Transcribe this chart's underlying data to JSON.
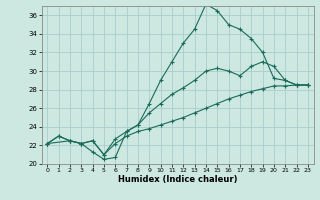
{
  "xlabel": "Humidex (Indice chaleur)",
  "background_color": "#cce8e0",
  "grid_color": "#aacccc",
  "line_color": "#1a6b5a",
  "xlim": [
    -0.5,
    23.5
  ],
  "ylim": [
    20,
    37
  ],
  "xticks": [
    0,
    1,
    2,
    3,
    4,
    5,
    6,
    7,
    8,
    9,
    10,
    11,
    12,
    13,
    14,
    15,
    16,
    17,
    18,
    19,
    20,
    21,
    22,
    23
  ],
  "yticks": [
    20,
    22,
    24,
    26,
    28,
    30,
    32,
    34,
    36
  ],
  "line1_x": [
    0,
    1,
    2,
    3,
    4,
    5,
    6,
    7,
    8,
    9,
    10,
    11,
    12,
    13,
    14,
    15,
    16,
    17,
    18,
    19,
    20,
    21,
    22,
    23
  ],
  "line1_y": [
    22.2,
    23.0,
    22.5,
    22.2,
    21.3,
    20.5,
    20.7,
    23.5,
    24.2,
    26.5,
    29.0,
    31.0,
    33.0,
    34.5,
    37.2,
    36.5,
    35.0,
    34.5,
    33.5,
    32.0,
    29.2,
    29.0,
    28.5,
    28.5
  ],
  "line2_x": [
    0,
    2,
    3,
    4,
    5,
    6,
    7,
    8,
    9,
    10,
    11,
    12,
    13,
    14,
    15,
    16,
    17,
    18,
    19,
    20,
    21,
    22,
    23
  ],
  "line2_y": [
    22.2,
    22.5,
    22.2,
    22.5,
    21.0,
    22.7,
    23.5,
    24.2,
    25.5,
    26.5,
    27.5,
    28.2,
    29.0,
    30.0,
    30.3,
    30.0,
    29.5,
    30.5,
    31.0,
    30.5,
    29.0,
    28.5,
    28.5
  ],
  "line3_x": [
    0,
    1,
    2,
    3,
    4,
    5,
    6,
    7,
    8,
    9,
    10,
    11,
    12,
    13,
    14,
    15,
    16,
    17,
    18,
    19,
    20,
    21,
    22,
    23
  ],
  "line3_y": [
    22.2,
    23.0,
    22.5,
    22.2,
    22.5,
    21.0,
    22.2,
    23.0,
    23.5,
    23.8,
    24.2,
    24.6,
    25.0,
    25.5,
    26.0,
    26.5,
    27.0,
    27.4,
    27.8,
    28.1,
    28.4,
    28.4,
    28.5,
    28.5
  ]
}
